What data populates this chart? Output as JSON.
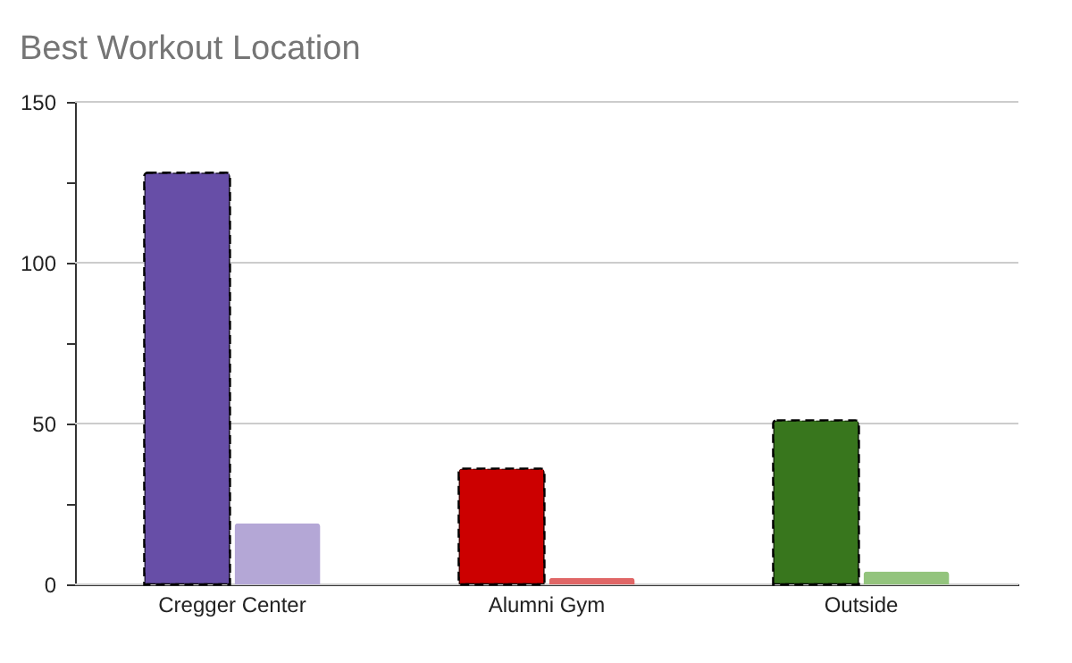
{
  "chart_data": {
    "type": "bar",
    "title": "Best Workout Location",
    "categories": [
      "Cregger Center",
      "Alumni Gym",
      "Outside"
    ],
    "series": [
      {
        "values": [
          128,
          36,
          51
        ],
        "colors": [
          "#674ea7",
          "#cc0000",
          "#38761d"
        ],
        "line_style": "dashed"
      },
      {
        "values": [
          19,
          2,
          4
        ],
        "colors": [
          "#b4a7d6",
          "#e06666",
          "#93c47d"
        ]
      }
    ],
    "ylim": [
      0,
      150
    ],
    "yticks": [
      0,
      {
        "value": 25,
        "label": null
      },
      50,
      {
        "value": 75,
        "label": null
      },
      100,
      {
        "value": 125,
        "label": null
      },
      150
    ],
    "grid": "y"
  }
}
